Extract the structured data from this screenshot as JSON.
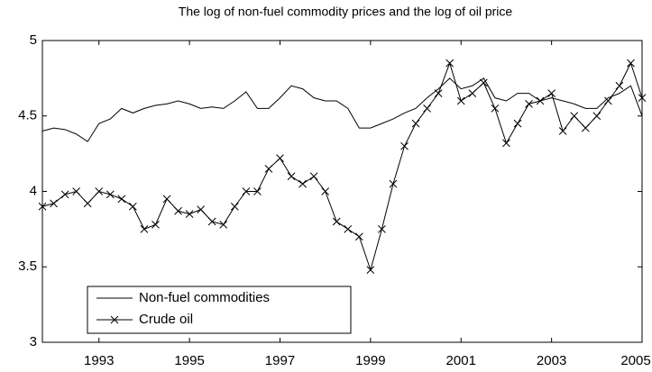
{
  "chart_data": {
    "type": "line",
    "title": "The log of non-fuel commodity prices and the log of oil price",
    "x": [
      1991.75,
      1992,
      1992.25,
      1992.5,
      1992.75,
      1993,
      1993.25,
      1993.5,
      1993.75,
      1994,
      1994.25,
      1994.5,
      1994.75,
      1995,
      1995.25,
      1995.5,
      1995.75,
      1996,
      1996.25,
      1996.5,
      1996.75,
      1997,
      1997.25,
      1997.5,
      1997.75,
      1998,
      1998.25,
      1998.5,
      1998.75,
      1999,
      1999.25,
      1999.5,
      1999.75,
      2000,
      2000.25,
      2000.5,
      2000.75,
      2001,
      2001.25,
      2001.5,
      2001.75,
      2002,
      2002.25,
      2002.5,
      2002.75,
      2003,
      2003.25,
      2003.5,
      2003.75,
      2004,
      2004.25,
      2004.5,
      2004.75,
      2005
    ],
    "series": [
      {
        "name": "Non-fuel commodities",
        "color": "#000000",
        "marker": "none",
        "values": [
          4.4,
          4.42,
          4.41,
          4.38,
          4.33,
          4.45,
          4.48,
          4.55,
          4.52,
          4.55,
          4.57,
          4.58,
          4.6,
          4.58,
          4.55,
          4.56,
          4.55,
          4.6,
          4.66,
          4.55,
          4.55,
          4.62,
          4.7,
          4.68,
          4.62,
          4.6,
          4.6,
          4.55,
          4.42,
          4.42,
          4.45,
          4.48,
          4.52,
          4.55,
          4.62,
          4.68,
          4.75,
          4.68,
          4.7,
          4.75,
          4.62,
          4.6,
          4.65,
          4.65,
          4.6,
          4.62,
          4.6,
          4.58,
          4.55,
          4.55,
          4.62,
          4.65,
          4.7,
          4.5
        ]
      },
      {
        "name": "Crude oil",
        "color": "#000000",
        "marker": "x",
        "values": [
          3.9,
          3.92,
          3.98,
          4.0,
          3.92,
          4.0,
          3.98,
          3.95,
          3.9,
          3.75,
          3.78,
          3.95,
          3.87,
          3.85,
          3.88,
          3.8,
          3.78,
          3.9,
          4.0,
          4.0,
          4.15,
          4.22,
          4.1,
          4.05,
          4.1,
          4.0,
          3.8,
          3.75,
          3.7,
          3.48,
          3.75,
          4.05,
          4.3,
          4.45,
          4.55,
          4.65,
          4.85,
          4.6,
          4.65,
          4.72,
          4.55,
          4.32,
          4.45,
          4.58,
          4.6,
          4.65,
          4.4,
          4.5,
          4.42,
          4.5,
          4.6,
          4.7,
          4.85,
          4.62
        ]
      }
    ],
    "xlim": [
      1991.75,
      2005
    ],
    "xticks": [
      1993,
      1995,
      1997,
      1999,
      2001,
      2003,
      2005
    ],
    "ylim": [
      3,
      5
    ],
    "yticks": [
      3,
      3.5,
      4,
      4.5,
      5
    ],
    "grid": false,
    "legend": "lower left"
  }
}
